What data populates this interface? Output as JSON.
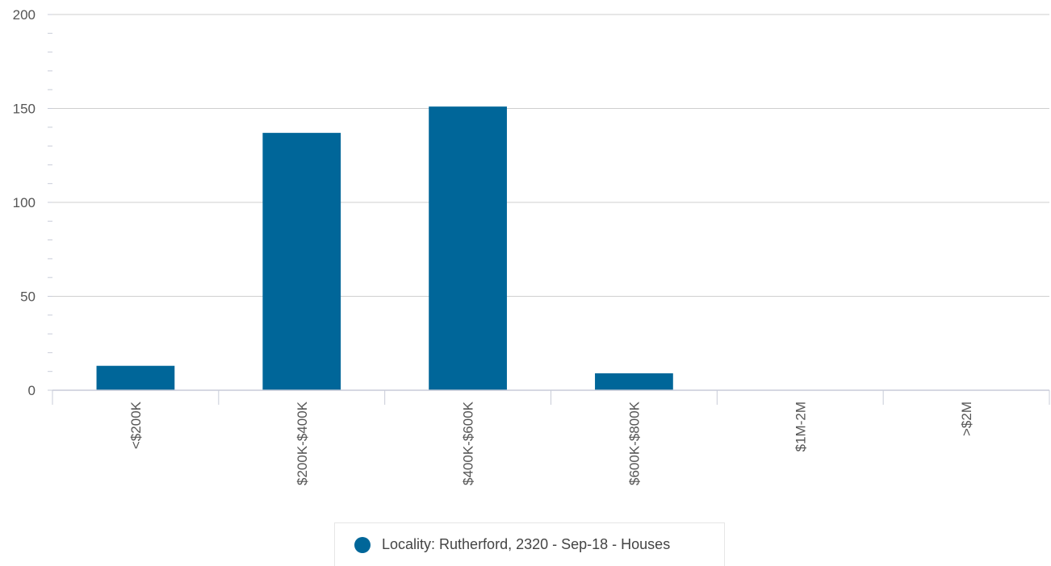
{
  "chart_data": {
    "type": "bar",
    "categories": [
      "<$200K",
      "$200K-$400K",
      "$400K-$600K",
      "$600K-$800K",
      "$1M-2M",
      ">$2M"
    ],
    "series": [
      {
        "name": "Locality: Rutherford, 2320 - Sep-18 - Houses",
        "values": [
          13,
          137,
          151,
          9,
          0,
          0
        ],
        "color": "#006699"
      }
    ],
    "ylim": [
      0,
      200
    ],
    "yticks": [
      0,
      50,
      100,
      150,
      200
    ],
    "grid": true,
    "legend_position": "bottom-center"
  }
}
